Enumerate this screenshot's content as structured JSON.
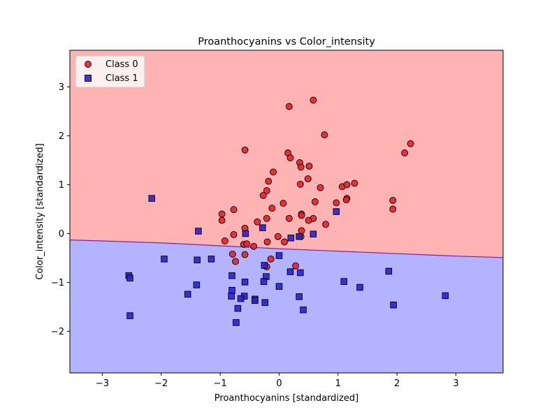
{
  "chart_data": {
    "type": "scatter",
    "title": "Proanthocyanins vs Color_intensity",
    "xlabel": "Proanthocyanins [standardized]",
    "ylabel": "Color_intensity [standardized]",
    "xlim": [
      -3.55,
      3.8
    ],
    "ylim": [
      -2.85,
      3.75
    ],
    "xticks": [
      -3,
      -2,
      -1,
      0,
      1,
      2,
      3
    ],
    "yticks": [
      -2,
      -1,
      0,
      1,
      2,
      3
    ],
    "xtick_labels": [
      "−3",
      "−2",
      "−1",
      "0",
      "1",
      "2",
      "3"
    ],
    "ytick_labels": [
      "−2",
      "−1",
      "0",
      "1",
      "2",
      "3"
    ],
    "grid": false,
    "legend_position": "top-left",
    "decision_regions": {
      "upper_color": "#ffb3b3",
      "lower_color": "#b3b3ff",
      "boundary_color": "#7a1fa0",
      "boundary": [
        [
          -3.55,
          -0.13
        ],
        [
          -3.0,
          -0.15
        ],
        [
          -2.0,
          -0.19
        ],
        [
          -1.0,
          -0.25
        ],
        [
          0.0,
          -0.31
        ],
        [
          1.0,
          -0.36
        ],
        [
          2.0,
          -0.41
        ],
        [
          3.0,
          -0.46
        ],
        [
          3.8,
          -0.49
        ]
      ]
    },
    "series": [
      {
        "name": "Class 0",
        "marker": "circle",
        "color": "#e8202a",
        "points": [
          [
            0.17,
            2.6
          ],
          [
            0.58,
            2.73
          ],
          [
            0.77,
            2.02
          ],
          [
            -0.58,
            1.71
          ],
          [
            0.15,
            1.65
          ],
          [
            0.19,
            1.55
          ],
          [
            0.35,
            1.45
          ],
          [
            0.37,
            1.36
          ],
          [
            0.51,
            1.38
          ],
          [
            -0.1,
            1.26
          ],
          [
            2.23,
            1.84
          ],
          [
            2.13,
            1.65
          ],
          [
            -0.18,
            1.07
          ],
          [
            0.49,
            1.12
          ],
          [
            0.36,
            1.01
          ],
          [
            0.7,
            0.94
          ],
          [
            -0.21,
            0.88
          ],
          [
            1.07,
            0.96
          ],
          [
            1.15,
            1.0
          ],
          [
            1.28,
            1.03
          ],
          [
            -0.27,
            0.78
          ],
          [
            1.15,
            0.72
          ],
          [
            1.14,
            0.69
          ],
          [
            0.61,
            0.65
          ],
          [
            0.97,
            0.63
          ],
          [
            0.07,
            0.62
          ],
          [
            1.93,
            0.68
          ],
          [
            1.93,
            0.5
          ],
          [
            -0.77,
            0.49
          ],
          [
            -0.12,
            0.52
          ],
          [
            -0.97,
            0.4
          ],
          [
            0.38,
            0.4
          ],
          [
            0.38,
            0.37
          ],
          [
            -0.97,
            0.27
          ],
          [
            -0.21,
            0.31
          ],
          [
            0.17,
            0.31
          ],
          [
            0.58,
            0.31
          ],
          [
            0.5,
            0.27
          ],
          [
            0.79,
            0.19
          ],
          [
            -0.37,
            0.24
          ],
          [
            -0.58,
            0.11
          ],
          [
            0.38,
            0.06
          ],
          [
            -0.77,
            -0.02
          ],
          [
            -0.02,
            -0.06
          ],
          [
            0.37,
            -0.06
          ],
          [
            -0.92,
            -0.15
          ],
          [
            -0.2,
            -0.17
          ],
          [
            0.09,
            -0.17
          ],
          [
            -0.6,
            -0.22
          ],
          [
            -0.55,
            -0.21
          ],
          [
            -0.43,
            -0.26
          ],
          [
            -0.79,
            -0.42
          ],
          [
            -0.58,
            -0.43
          ],
          [
            -0.74,
            -0.57
          ],
          [
            -0.14,
            -0.52
          ],
          [
            0.28,
            -0.66
          ],
          [
            -0.21,
            -0.68
          ]
        ]
      },
      {
        "name": "Class 1",
        "marker": "square",
        "color": "#2a1fd6",
        "points": [
          [
            -2.16,
            0.72
          ],
          [
            -1.37,
            0.05
          ],
          [
            0.97,
            0.45
          ],
          [
            -0.57,
            0.0
          ],
          [
            -0.28,
            0.12
          ],
          [
            0.58,
            -0.01
          ],
          [
            0.34,
            -0.06
          ],
          [
            0.2,
            -0.09
          ],
          [
            -1.95,
            -0.52
          ],
          [
            -1.15,
            -0.52
          ],
          [
            -1.39,
            -0.54
          ],
          [
            0.0,
            -0.45
          ],
          [
            -0.25,
            -0.65
          ],
          [
            -2.55,
            -0.86
          ],
          [
            -2.53,
            -0.91
          ],
          [
            -1.4,
            -1.05
          ],
          [
            -0.8,
            -0.86
          ],
          [
            -0.22,
            -0.88
          ],
          [
            -0.26,
            -0.98
          ],
          [
            -0.58,
            -0.99
          ],
          [
            0.19,
            -0.78
          ],
          [
            0.36,
            -0.8
          ],
          [
            1.1,
            -0.98
          ],
          [
            1.86,
            -0.77
          ],
          [
            1.37,
            -1.1
          ],
          [
            0.0,
            -1.08
          ],
          [
            -0.8,
            -1.16
          ],
          [
            -1.55,
            -1.24
          ],
          [
            -0.81,
            -1.28
          ],
          [
            -0.59,
            -1.28
          ],
          [
            -0.65,
            -1.33
          ],
          [
            -0.41,
            -1.34
          ],
          [
            -0.41,
            -1.37
          ],
          [
            0.34,
            -1.29
          ],
          [
            -0.24,
            -1.41
          ],
          [
            1.94,
            -1.46
          ],
          [
            2.82,
            -1.27
          ],
          [
            -0.7,
            -1.53
          ],
          [
            0.41,
            -1.56
          ],
          [
            -2.53,
            -1.68
          ],
          [
            -0.73,
            -1.82
          ]
        ]
      }
    ]
  }
}
